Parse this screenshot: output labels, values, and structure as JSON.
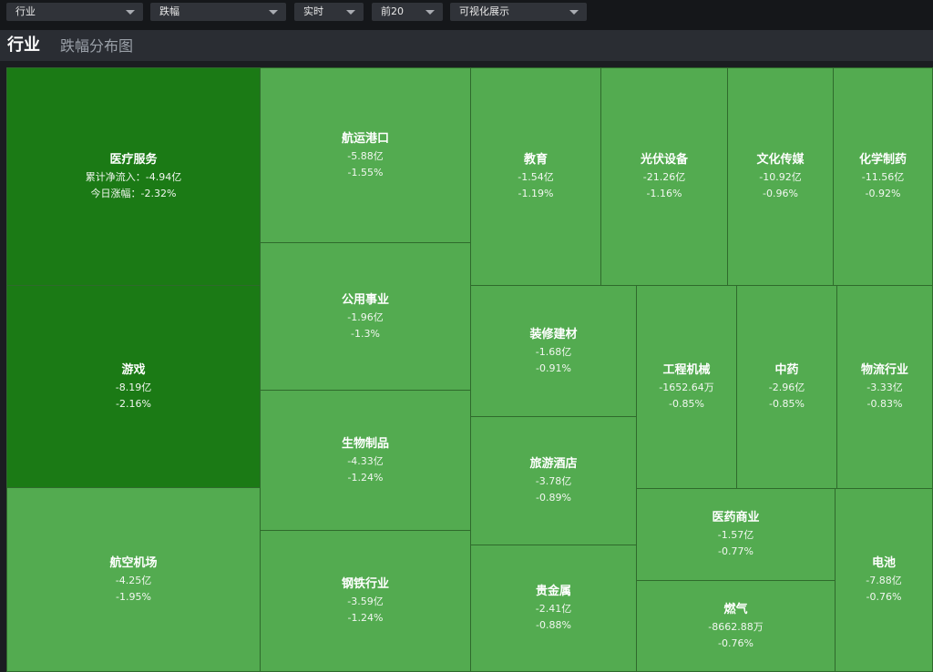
{
  "toolbar": {
    "selectors": [
      {
        "name": "industry-select",
        "label": "行业"
      },
      {
        "name": "metric-select",
        "label": "跌幅"
      },
      {
        "name": "period-select",
        "label": "实时"
      },
      {
        "name": "topn-select",
        "label": "前20"
      },
      {
        "name": "view-select",
        "label": "可视化展示"
      }
    ]
  },
  "header": {
    "title": "行业",
    "subtitle": "跌幅分布图"
  },
  "colors": {
    "dark_green": "#1b7a15",
    "light_green": "#53ab50",
    "tile_border": "#2f6a2c",
    "background": "#1b1d21"
  },
  "treemap": {
    "tiles": [
      {
        "name": "医疗服务",
        "flow": "-4.94亿",
        "change": "-2.32%",
        "flow_prefix": "累计净流入：",
        "change_prefix": "今日涨幅：",
        "highlight": true
      },
      {
        "name": "游戏",
        "flow": "-8.19亿",
        "change": "-2.16%",
        "highlight": true
      },
      {
        "name": "航空机场",
        "flow": "-4.25亿",
        "change": "-1.95%"
      },
      {
        "name": "航运港口",
        "flow": "-5.88亿",
        "change": "-1.55%"
      },
      {
        "name": "公用事业",
        "flow": "-1.96亿",
        "change": "-1.3%"
      },
      {
        "name": "生物制品",
        "flow": "-4.33亿",
        "change": "-1.24%"
      },
      {
        "name": "钢铁行业",
        "flow": "-3.59亿",
        "change": "-1.24%"
      },
      {
        "name": "教育",
        "flow": "-1.54亿",
        "change": "-1.19%"
      },
      {
        "name": "光伏设备",
        "flow": "-21.26亿",
        "change": "-1.16%"
      },
      {
        "name": "文化传媒",
        "flow": "-10.92亿",
        "change": "-0.96%"
      },
      {
        "name": "化学制药",
        "flow": "-11.56亿",
        "change": "-0.92%"
      },
      {
        "name": "装修建材",
        "flow": "-1.68亿",
        "change": "-0.91%"
      },
      {
        "name": "旅游酒店",
        "flow": "-3.78亿",
        "change": "-0.89%"
      },
      {
        "name": "贵金属",
        "flow": "-2.41亿",
        "change": "-0.88%"
      },
      {
        "name": "工程机械",
        "flow": "-1652.64万",
        "change": "-0.85%"
      },
      {
        "name": "中药",
        "flow": "-2.96亿",
        "change": "-0.85%"
      },
      {
        "name": "物流行业",
        "flow": "-3.33亿",
        "change": "-0.83%"
      },
      {
        "name": "医药商业",
        "flow": "-1.57亿",
        "change": "-0.77%"
      },
      {
        "name": "燃气",
        "flow": "-8662.88万",
        "change": "-0.76%"
      },
      {
        "name": "电池",
        "flow": "-7.88亿",
        "change": "-0.76%"
      }
    ]
  }
}
